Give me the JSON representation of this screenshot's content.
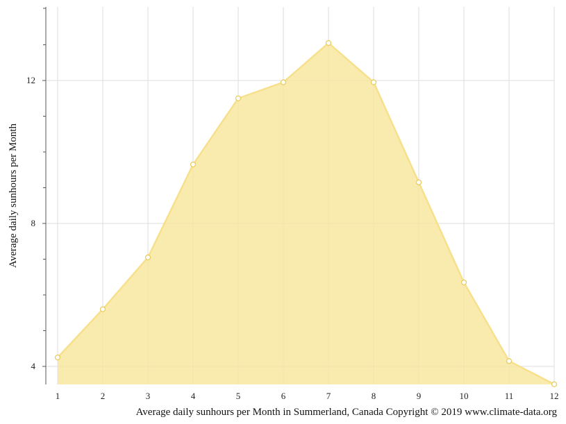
{
  "chart_data": {
    "type": "area",
    "x": [
      1,
      2,
      3,
      4,
      5,
      6,
      7,
      8,
      9,
      10,
      11,
      12
    ],
    "series": [
      {
        "values": [
          4.25,
          5.6,
          7.05,
          9.65,
          11.5,
          11.95,
          13.05,
          11.95,
          9.15,
          6.35,
          4.15,
          3.5
        ]
      }
    ],
    "title": "",
    "xlabel": "",
    "ylabel": "Average daily sunhours per Month",
    "xlim": [
      1,
      12
    ],
    "ylim": [
      3.5,
      14
    ],
    "yticks": [
      4,
      8,
      12
    ],
    "grid": true,
    "fill_color": "#f8e7a0",
    "line_color": "#f7e08c",
    "marker_edge_color": "#e8cc5c"
  },
  "footer": "Average daily sunhours per Month in Summerland, Canada Copyright © 2019 www.climate-data.org"
}
